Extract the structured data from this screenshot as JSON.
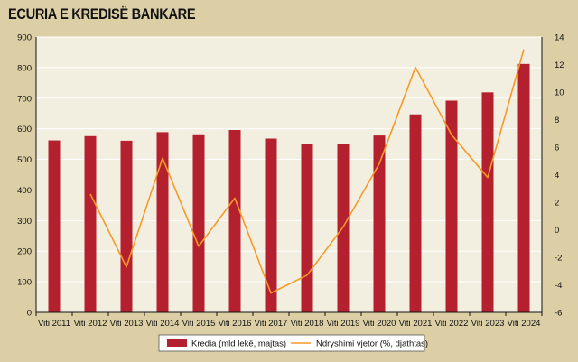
{
  "title": "ECURIA E KREDISË BANKARE",
  "colors": {
    "background": "#dccfa6",
    "plot_background": "#f3efe0",
    "bar": "#b5202e",
    "line": "#f59a26",
    "grid": "#ffffff"
  },
  "chart_data": {
    "type": "bar",
    "categories": [
      "Viti 2011",
      "Viti 2012",
      "Viti 2013",
      "Viti 2014",
      "Viti 2015",
      "Viti 2016",
      "Viti 2017",
      "Viti 2018",
      "Viti 2019",
      "Viti 2020",
      "Viti 2021",
      "Viti 2022",
      "Viti 2023",
      "Viti 2024"
    ],
    "series": [
      {
        "name": "Kredia (mld lekë, majtas)",
        "type": "bar",
        "axis": "left",
        "values": [
          562,
          576,
          561,
          589,
          582,
          596,
          568,
          550,
          550,
          578,
          647,
          692,
          719,
          812
        ]
      },
      {
        "name": "Ndryshimi vjetor (%, djathtas)",
        "type": "line",
        "axis": "right",
        "values": [
          null,
          2.6,
          -2.7,
          5.2,
          -1.2,
          2.3,
          -4.6,
          -3.3,
          0.2,
          4.8,
          11.8,
          6.9,
          3.8,
          13.1
        ]
      }
    ],
    "y_left": {
      "min": 0,
      "max": 900,
      "ticks": [
        "0",
        "100",
        "200",
        "300",
        "400",
        "500",
        "600",
        "700",
        "800",
        "900"
      ]
    },
    "y_right": {
      "min": -6,
      "max": 14,
      "ticks": [
        "-6",
        "-4",
        "-2",
        "0",
        "2",
        "4",
        "6",
        "8",
        "10",
        "12",
        "14"
      ]
    },
    "grid": true,
    "legend_position": "bottom"
  }
}
